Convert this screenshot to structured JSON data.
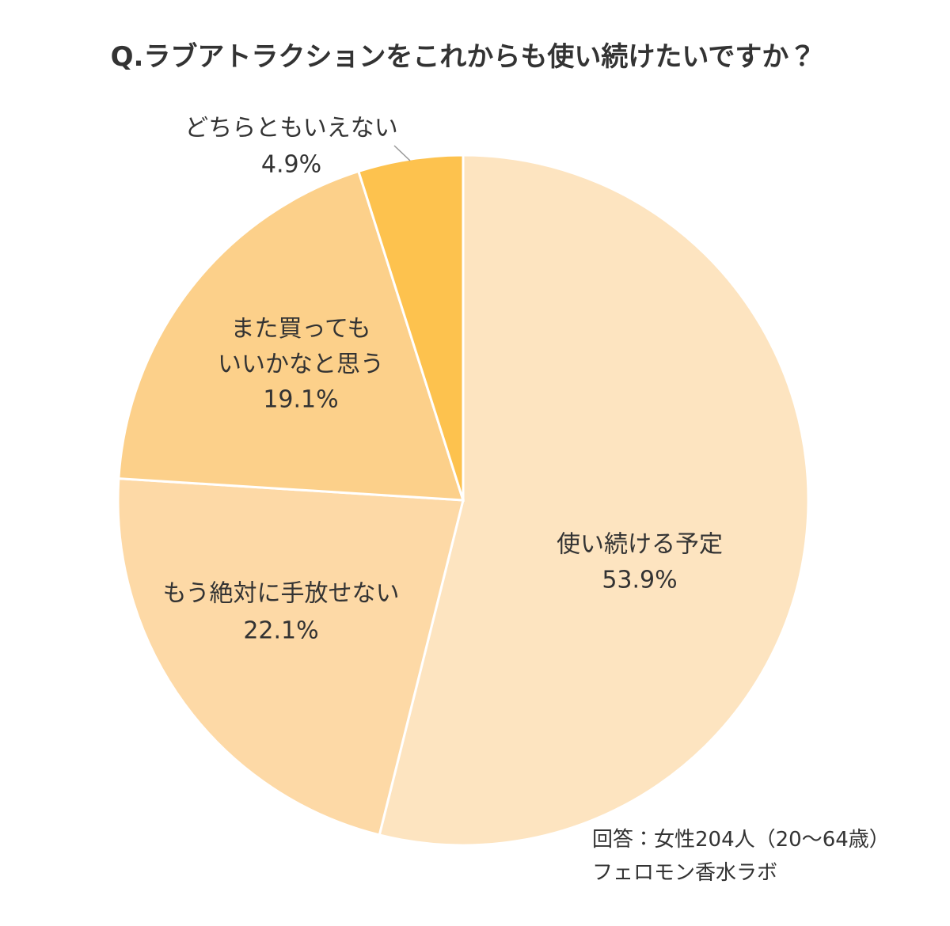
{
  "chart_data": {
    "type": "pie",
    "title": "Q.ラブアトラクションをこれからも使い続けたいですか？",
    "categories": [
      "使い続ける予定",
      "もう絶対に手放せない",
      "また買っても\nいいかなと思う",
      "どちらともいえない"
    ],
    "values": [
      53.9,
      22.1,
      19.1,
      4.9
    ],
    "value_labels": [
      "53.9%",
      "22.1%",
      "19.1%",
      "4.9%"
    ],
    "colors": [
      "#fde4c0",
      "#fdd9a6",
      "#fcd08a",
      "#fdc24e"
    ],
    "notes": [
      "回答：女性204人（20～64歳）",
      "フェロモン香水ラボ"
    ]
  }
}
